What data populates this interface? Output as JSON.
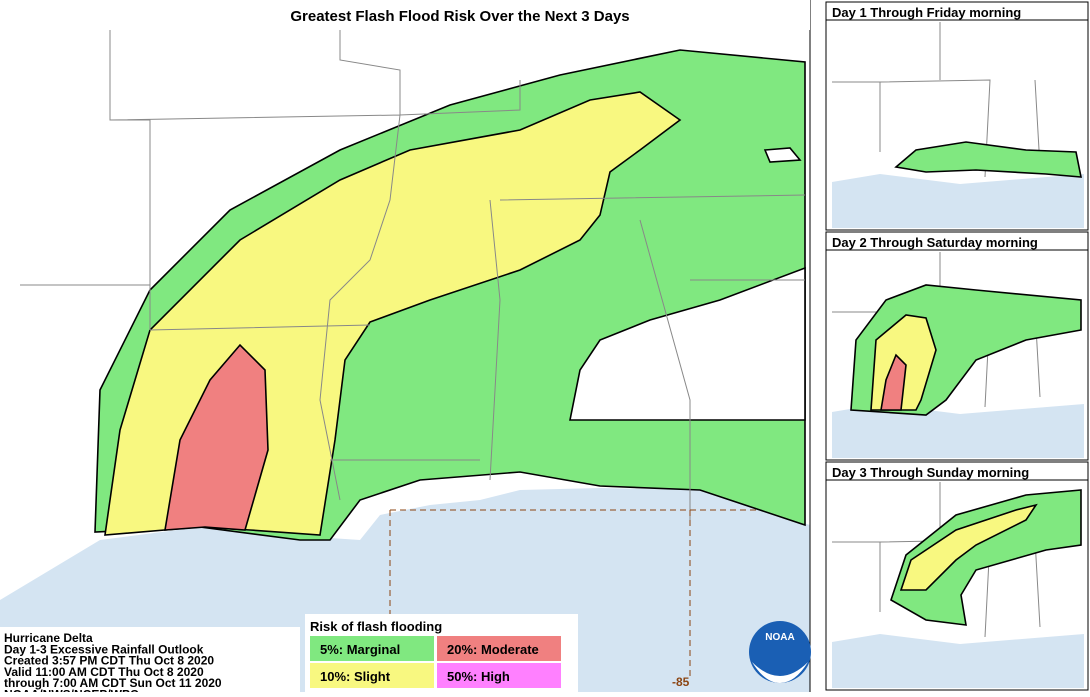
{
  "title": "Greatest Flash Flood Risk Over the Next 3 Days",
  "info": {
    "lines": [
      "Hurricane Delta",
      "Day 1-3 Excessive Rainfall Outlook",
      "Created 3:57 PM CDT Thu Oct 8 2020",
      "Valid 11:00 AM CDT Thu Oct 8 2020",
      "through 7:00 AM CDT Sun Oct 11 2020",
      "NOAA/NWS/NCEP/WPC"
    ]
  },
  "legend": {
    "title": "Risk of flash flooding",
    "items": [
      {
        "label": "5%: Marginal",
        "color": "#80e880"
      },
      {
        "label": "20%: Moderate",
        "color": "#f08080"
      },
      {
        "label": "10%: Slight",
        "color": "#f8f880"
      },
      {
        "label": "50%: High",
        "color": "#ff80ff"
      }
    ]
  },
  "longitude_label": "-85",
  "logo": "NOAA",
  "panels": [
    {
      "title": "Day 1 Through Friday morning"
    },
    {
      "title": "Day 2 Through Saturday morning"
    },
    {
      "title": "Day 3 Through Sunday morning"
    }
  ]
}
